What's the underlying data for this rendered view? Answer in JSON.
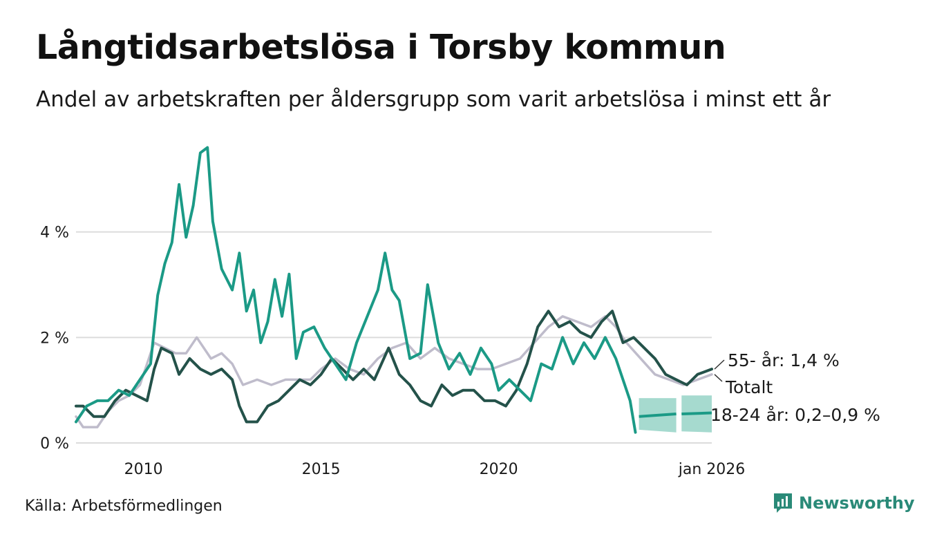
{
  "title": "Långtidsarbetslösa i Torsby kommun",
  "subtitle": "Andel av arbetskraften per åldersgrupp som varit arbetslösa i minst ett år",
  "source": "Källa: Arbetsförmedlingen",
  "brand": "Newsworthy",
  "colors": {
    "youth": "#1b9a86",
    "senior": "#24524a",
    "total": "#bfbccb",
    "band": "#96d3c7",
    "grid": "#dcdcdc"
  },
  "chart_data": {
    "type": "line",
    "title": "Långtidsarbetslösa i Torsby kommun",
    "xlabel": "",
    "ylabel": "",
    "xlim": [
      2008.1,
      2026.0
    ],
    "ylim": [
      0,
      6
    ],
    "y_ticks": [
      0,
      2,
      4
    ],
    "y_tick_labels": [
      "0 %",
      "2 %",
      "4 %"
    ],
    "x_ticks": [
      2010,
      2015,
      2020,
      2026
    ],
    "x_tick_labels": [
      "2010",
      "2015",
      "2020",
      "jan 2026"
    ],
    "series": [
      {
        "name": "Totalt",
        "key": "total",
        "label": "Totalt",
        "points": [
          [
            2008.1,
            0.5
          ],
          [
            2008.3,
            0.3
          ],
          [
            2008.7,
            0.3
          ],
          [
            2009.0,
            0.6
          ],
          [
            2009.3,
            0.8
          ],
          [
            2009.6,
            0.9
          ],
          [
            2009.9,
            1.1
          ],
          [
            2010.1,
            1.5
          ],
          [
            2010.3,
            1.9
          ],
          [
            2010.6,
            1.8
          ],
          [
            2010.9,
            1.7
          ],
          [
            2011.2,
            1.7
          ],
          [
            2011.5,
            2.0
          ],
          [
            2011.9,
            1.6
          ],
          [
            2012.2,
            1.7
          ],
          [
            2012.5,
            1.5
          ],
          [
            2012.8,
            1.1
          ],
          [
            2013.2,
            1.2
          ],
          [
            2013.6,
            1.1
          ],
          [
            2014.0,
            1.2
          ],
          [
            2014.3,
            1.2
          ],
          [
            2014.7,
            1.2
          ],
          [
            2015.0,
            1.4
          ],
          [
            2015.4,
            1.6
          ],
          [
            2015.8,
            1.4
          ],
          [
            2016.2,
            1.3
          ],
          [
            2016.6,
            1.6
          ],
          [
            2017.0,
            1.8
          ],
          [
            2017.4,
            1.9
          ],
          [
            2017.8,
            1.6
          ],
          [
            2018.2,
            1.8
          ],
          [
            2018.6,
            1.6
          ],
          [
            2019.0,
            1.5
          ],
          [
            2019.4,
            1.4
          ],
          [
            2019.8,
            1.4
          ],
          [
            2020.2,
            1.5
          ],
          [
            2020.6,
            1.6
          ],
          [
            2021.0,
            1.9
          ],
          [
            2021.4,
            2.2
          ],
          [
            2021.8,
            2.4
          ],
          [
            2022.2,
            2.3
          ],
          [
            2022.6,
            2.2
          ],
          [
            2023.0,
            2.4
          ],
          [
            2023.3,
            2.2
          ],
          [
            2023.6,
            1.9
          ],
          [
            2024.0,
            1.6
          ],
          [
            2024.4,
            1.3
          ],
          [
            2024.8,
            1.2
          ],
          [
            2025.2,
            1.1
          ],
          [
            2025.6,
            1.2
          ],
          [
            2026.0,
            1.3
          ]
        ]
      },
      {
        "name": "55- år",
        "key": "senior",
        "label": "55- år: 1,4 %",
        "points": [
          [
            2008.1,
            0.7
          ],
          [
            2008.3,
            0.7
          ],
          [
            2008.6,
            0.5
          ],
          [
            2008.9,
            0.5
          ],
          [
            2009.2,
            0.8
          ],
          [
            2009.5,
            1.0
          ],
          [
            2009.8,
            0.9
          ],
          [
            2010.1,
            0.8
          ],
          [
            2010.3,
            1.4
          ],
          [
            2010.5,
            1.8
          ],
          [
            2010.8,
            1.7
          ],
          [
            2011.0,
            1.3
          ],
          [
            2011.3,
            1.6
          ],
          [
            2011.6,
            1.4
          ],
          [
            2011.9,
            1.3
          ],
          [
            2012.2,
            1.4
          ],
          [
            2012.5,
            1.2
          ],
          [
            2012.7,
            0.7
          ],
          [
            2012.9,
            0.4
          ],
          [
            2013.2,
            0.4
          ],
          [
            2013.5,
            0.7
          ],
          [
            2013.8,
            0.8
          ],
          [
            2014.1,
            1.0
          ],
          [
            2014.4,
            1.2
          ],
          [
            2014.7,
            1.1
          ],
          [
            2015.0,
            1.3
          ],
          [
            2015.3,
            1.6
          ],
          [
            2015.6,
            1.4
          ],
          [
            2015.9,
            1.2
          ],
          [
            2016.2,
            1.4
          ],
          [
            2016.5,
            1.2
          ],
          [
            2016.9,
            1.8
          ],
          [
            2017.2,
            1.3
          ],
          [
            2017.5,
            1.1
          ],
          [
            2017.8,
            0.8
          ],
          [
            2018.1,
            0.7
          ],
          [
            2018.4,
            1.1
          ],
          [
            2018.7,
            0.9
          ],
          [
            2019.0,
            1.0
          ],
          [
            2019.3,
            1.0
          ],
          [
            2019.6,
            0.8
          ],
          [
            2019.9,
            0.8
          ],
          [
            2020.2,
            0.7
          ],
          [
            2020.5,
            1.0
          ],
          [
            2020.8,
            1.5
          ],
          [
            2021.1,
            2.2
          ],
          [
            2021.4,
            2.5
          ],
          [
            2021.7,
            2.2
          ],
          [
            2022.0,
            2.3
          ],
          [
            2022.3,
            2.1
          ],
          [
            2022.6,
            2.0
          ],
          [
            2022.9,
            2.3
          ],
          [
            2023.2,
            2.5
          ],
          [
            2023.5,
            1.9
          ],
          [
            2023.8,
            2.0
          ],
          [
            2024.1,
            1.8
          ],
          [
            2024.4,
            1.6
          ],
          [
            2024.7,
            1.3
          ],
          [
            2025.0,
            1.2
          ],
          [
            2025.3,
            1.1
          ],
          [
            2025.6,
            1.3
          ],
          [
            2026.0,
            1.4
          ]
        ]
      },
      {
        "name": "18-24 år",
        "key": "youth",
        "label": "18-24 år: 0,2–0,9 %",
        "points": [
          [
            2008.1,
            0.4
          ],
          [
            2008.4,
            0.7
          ],
          [
            2008.7,
            0.8
          ],
          [
            2009.0,
            0.8
          ],
          [
            2009.3,
            1.0
          ],
          [
            2009.6,
            0.9
          ],
          [
            2009.9,
            1.2
          ],
          [
            2010.2,
            1.5
          ],
          [
            2010.4,
            2.8
          ],
          [
            2010.6,
            3.4
          ],
          [
            2010.8,
            3.8
          ],
          [
            2011.0,
            4.9
          ],
          [
            2011.2,
            3.9
          ],
          [
            2011.4,
            4.5
          ],
          [
            2011.6,
            5.5
          ],
          [
            2011.8,
            5.6
          ],
          [
            2011.95,
            4.2
          ],
          [
            2012.2,
            3.3
          ],
          [
            2012.5,
            2.9
          ],
          [
            2012.7,
            3.6
          ],
          [
            2012.9,
            2.5
          ],
          [
            2013.1,
            2.9
          ],
          [
            2013.3,
            1.9
          ],
          [
            2013.5,
            2.3
          ],
          [
            2013.7,
            3.1
          ],
          [
            2013.9,
            2.4
          ],
          [
            2014.1,
            3.2
          ],
          [
            2014.3,
            1.6
          ],
          [
            2014.5,
            2.1
          ],
          [
            2014.8,
            2.2
          ],
          [
            2015.1,
            1.8
          ],
          [
            2015.4,
            1.5
          ],
          [
            2015.7,
            1.2
          ],
          [
            2016.0,
            1.9
          ],
          [
            2016.3,
            2.4
          ],
          [
            2016.6,
            2.9
          ],
          [
            2016.8,
            3.6
          ],
          [
            2017.0,
            2.9
          ],
          [
            2017.2,
            2.7
          ],
          [
            2017.5,
            1.6
          ],
          [
            2017.8,
            1.7
          ],
          [
            2018.0,
            3.0
          ],
          [
            2018.3,
            1.9
          ],
          [
            2018.6,
            1.4
          ],
          [
            2018.9,
            1.7
          ],
          [
            2019.2,
            1.3
          ],
          [
            2019.5,
            1.8
          ],
          [
            2019.8,
            1.5
          ],
          [
            2020.0,
            1.0
          ],
          [
            2020.3,
            1.2
          ],
          [
            2020.6,
            1.0
          ],
          [
            2020.9,
            0.8
          ],
          [
            2021.2,
            1.5
          ],
          [
            2021.5,
            1.4
          ],
          [
            2021.8,
            2.0
          ],
          [
            2022.1,
            1.5
          ],
          [
            2022.4,
            1.9
          ],
          [
            2022.7,
            1.6
          ],
          [
            2023.0,
            2.0
          ],
          [
            2023.3,
            1.6
          ],
          [
            2023.5,
            1.2
          ],
          [
            2023.7,
            0.8
          ],
          [
            2023.85,
            0.2
          ]
        ]
      },
      {
        "name": "18-24 år (skattning)",
        "key": "youth_est",
        "label": "",
        "segments": [
          {
            "points": [
              [
                2023.95,
                0.5
              ],
              [
                2025.0,
                0.55
              ]
            ],
            "band": [
              [
                2023.95,
                0.25,
                0.85
              ],
              [
                2025.0,
                0.2,
                0.85
              ]
            ]
          },
          {
            "points": [
              [
                2025.15,
                0.55
              ],
              [
                2026.0,
                0.57
              ]
            ],
            "band": [
              [
                2025.15,
                0.22,
                0.9
              ],
              [
                2026.0,
                0.2,
                0.9
              ]
            ]
          }
        ]
      }
    ]
  }
}
